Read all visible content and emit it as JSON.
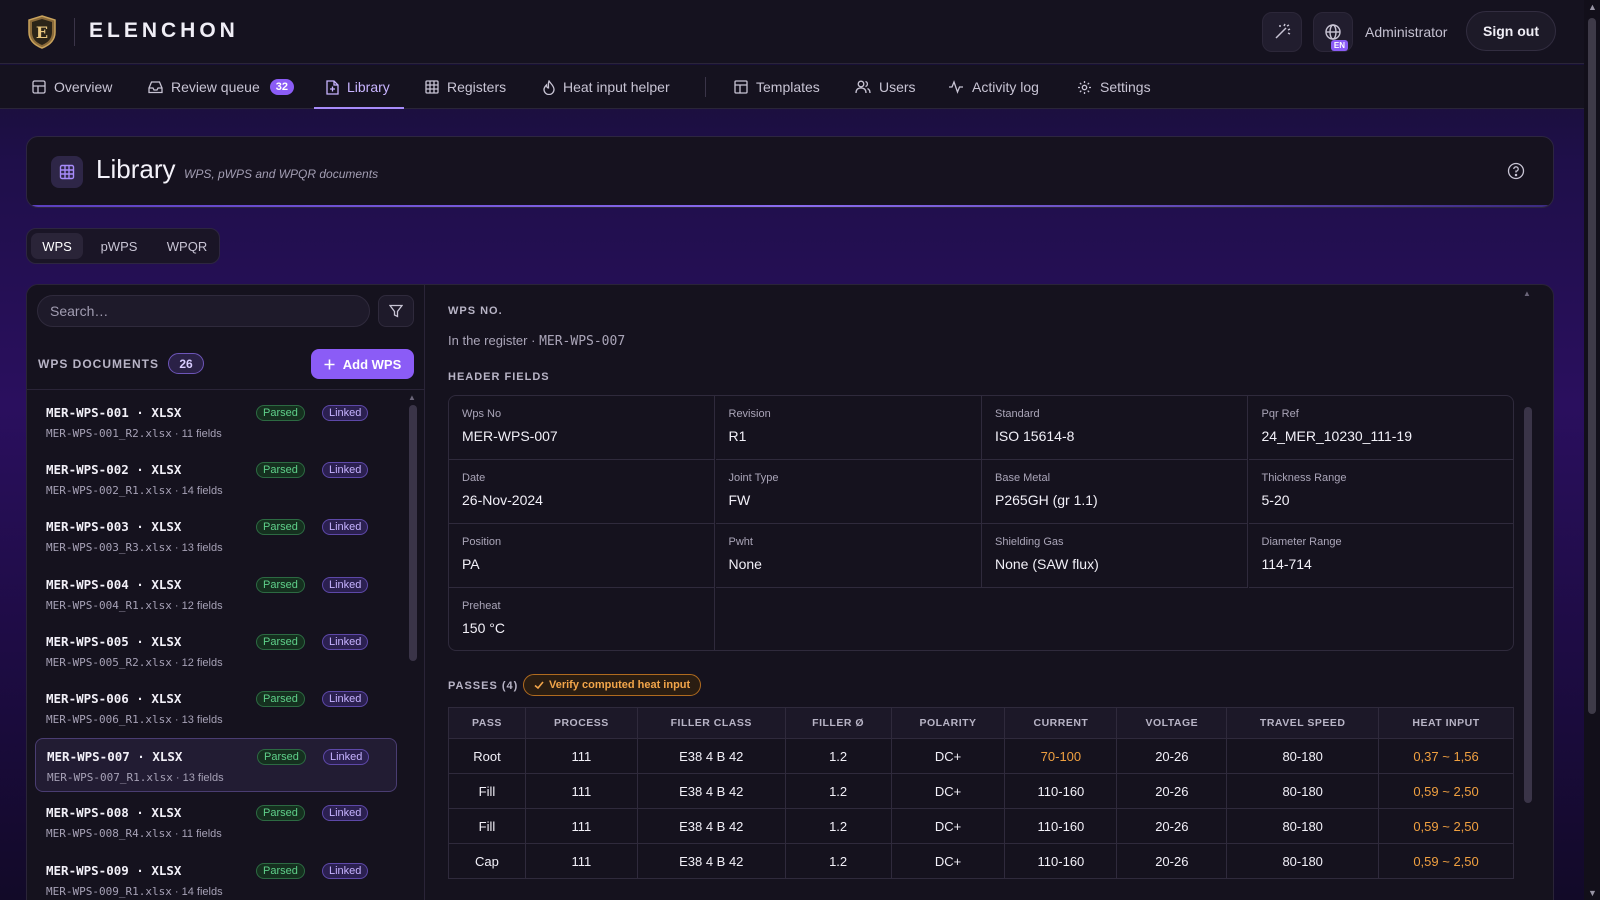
{
  "app": {
    "brand": "ELENCHON",
    "logo_letter": "E",
    "lang": "EN",
    "user": "Administrator",
    "sign_out": "Sign out"
  },
  "nav": {
    "items": [
      {
        "label": "Overview",
        "icon": "dashboard-icon"
      },
      {
        "label": "Review queue",
        "icon": "inbox-icon",
        "count": "32"
      },
      {
        "label": "Library",
        "icon": "file-icon",
        "active": true
      },
      {
        "label": "Registers",
        "icon": "table-icon"
      },
      {
        "label": "Heat input helper",
        "icon": "flame-icon"
      },
      {
        "label": "Templates",
        "icon": "template-icon"
      },
      {
        "label": "Users",
        "icon": "users-icon"
      },
      {
        "label": "Activity log",
        "icon": "activity-icon"
      },
      {
        "label": "Settings",
        "icon": "gear-icon"
      }
    ]
  },
  "header": {
    "title": "Library",
    "subtitle": "WPS, pWPS and WPQR documents"
  },
  "segments": [
    "WPS",
    "pWPS",
    "WPQR"
  ],
  "list": {
    "search_placeholder": "Search…",
    "title": "WPS DOCUMENTS",
    "count": "26",
    "add_label": "Add WPS",
    "badge_parsed": "Parsed",
    "badge_linked": "Linked",
    "items": [
      {
        "name": "MER-WPS-001 · XLSX",
        "file": "MER-WPS-001_R2.xlsx",
        "fields": "· 11 fields"
      },
      {
        "name": "MER-WPS-002 · XLSX",
        "file": "MER-WPS-002_R1.xlsx",
        "fields": "· 14 fields"
      },
      {
        "name": "MER-WPS-003 · XLSX",
        "file": "MER-WPS-003_R3.xlsx",
        "fields": "· 13 fields"
      },
      {
        "name": "MER-WPS-004 · XLSX",
        "file": "MER-WPS-004_R1.xlsx",
        "fields": "· 12 fields"
      },
      {
        "name": "MER-WPS-005 · XLSX",
        "file": "MER-WPS-005_R2.xlsx",
        "fields": "· 12 fields"
      },
      {
        "name": "MER-WPS-006 · XLSX",
        "file": "MER-WPS-006_R1.xlsx",
        "fields": "· 13 fields"
      },
      {
        "name": "MER-WPS-007 · XLSX",
        "file": "MER-WPS-007_R1.xlsx",
        "fields": "· 13 fields",
        "selected": true
      },
      {
        "name": "MER-WPS-008 · XLSX",
        "file": "MER-WPS-008_R4.xlsx",
        "fields": "· 11 fields"
      },
      {
        "name": "MER-WPS-009 · XLSX",
        "file": "MER-WPS-009_R1.xlsx",
        "fields": "· 14 fields"
      }
    ]
  },
  "detail": {
    "wps_no_label": "WPS NO.",
    "register_prefix": "In the register ·",
    "register_value": "MER-WPS-007",
    "header_fields_label": "HEADER FIELDS",
    "fields": [
      {
        "label": "Wps No",
        "value": "MER-WPS-007"
      },
      {
        "label": "Revision",
        "value": "R1"
      },
      {
        "label": "Standard",
        "value": "ISO 15614-8"
      },
      {
        "label": "Pqr Ref",
        "value": "24_MER_10230_111-19"
      },
      {
        "label": "Date",
        "value": "26-Nov-2024"
      },
      {
        "label": "Joint Type",
        "value": "FW"
      },
      {
        "label": "Base Metal",
        "value": "P265GH (gr 1.1)"
      },
      {
        "label": "Thickness Range",
        "value": "5-20"
      },
      {
        "label": "Position",
        "value": "PA"
      },
      {
        "label": "Pwht",
        "value": "None"
      },
      {
        "label": "Shielding Gas",
        "value": "None (SAW flux)"
      },
      {
        "label": "Diameter Range",
        "value": "114-714"
      },
      {
        "label": "Preheat",
        "value": "150 °C"
      }
    ],
    "passes_label": "PASSES (4)",
    "verify_label": "Verify computed heat input",
    "columns": [
      "PASS",
      "PROCESS",
      "FILLER CLASS",
      "FILLER Ø",
      "POLARITY",
      "CURRENT",
      "VOLTAGE",
      "TRAVEL SPEED",
      "HEAT INPUT"
    ],
    "passes": [
      [
        "Root",
        "111",
        "E38 4 B 42",
        "1.2",
        "DC+",
        "70-100",
        "20-26",
        "80-180",
        "0,37 ~ 1,56"
      ],
      [
        "Fill",
        "111",
        "E38 4 B 42",
        "1.2",
        "DC+",
        "110-160",
        "20-26",
        "80-180",
        "0,59 ~ 2,50"
      ],
      [
        "Fill",
        "111",
        "E38 4 B 42",
        "1.2",
        "DC+",
        "110-160",
        "20-26",
        "80-180",
        "0,59 ~ 2,50"
      ],
      [
        "Cap",
        "111",
        "E38 4 B 42",
        "1.2",
        "DC+",
        "110-160",
        "20-26",
        "80-180",
        "0,59 ~ 2,50"
      ]
    ],
    "warn_columns": [
      5,
      8
    ],
    "warn_rows_current": [
      0
    ]
  }
}
